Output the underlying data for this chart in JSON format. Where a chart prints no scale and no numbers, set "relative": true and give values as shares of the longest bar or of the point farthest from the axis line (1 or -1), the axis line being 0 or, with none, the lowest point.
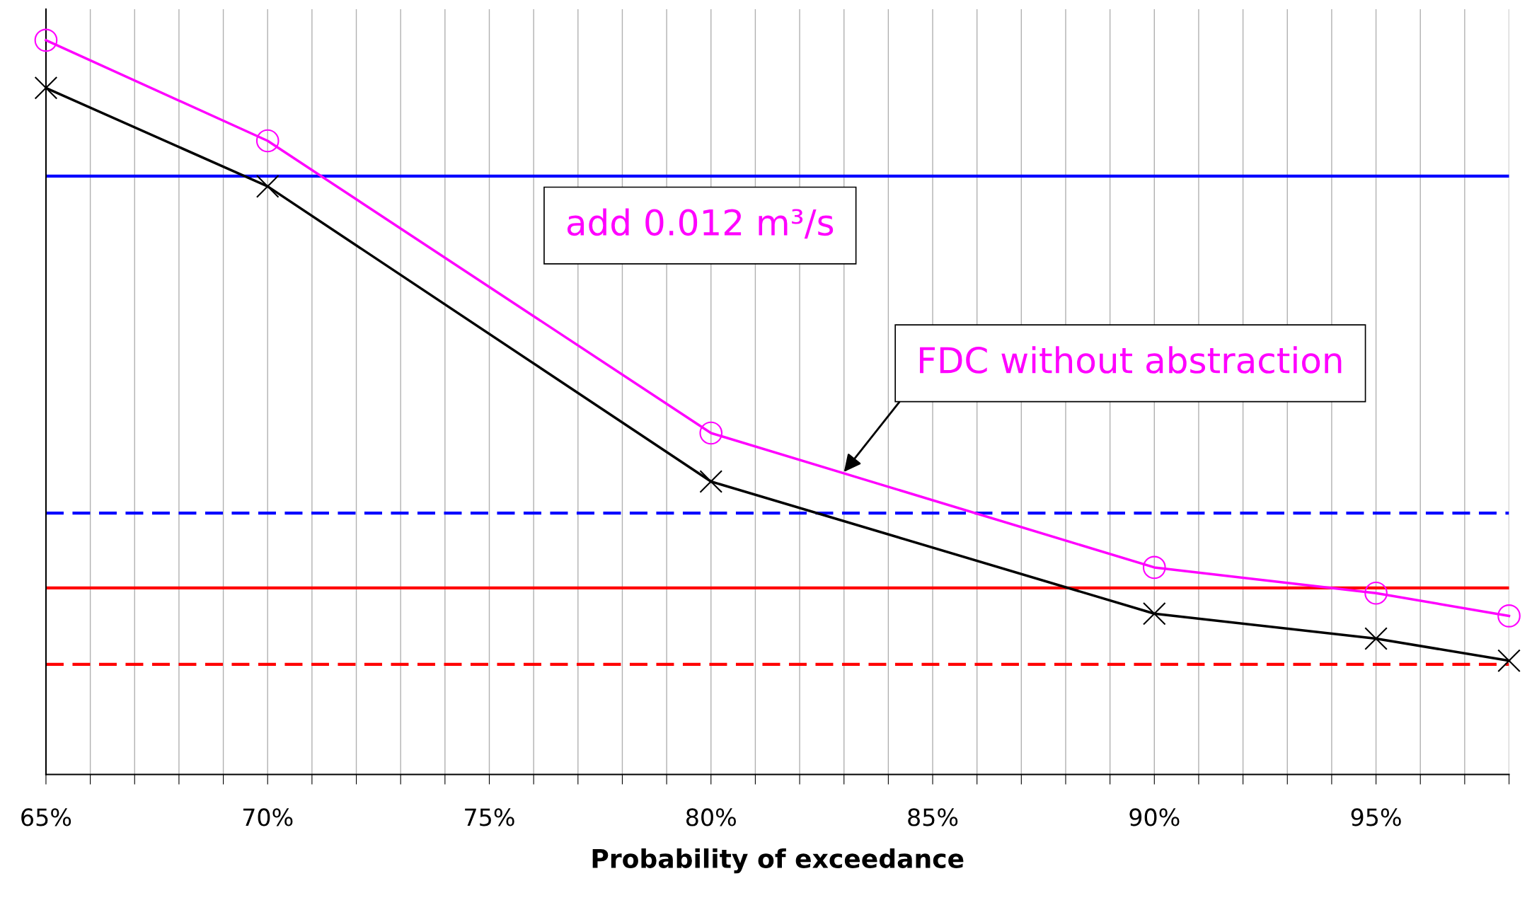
{
  "chart_data": {
    "type": "line",
    "xlabel": "Probability of exceedance",
    "relative": true,
    "x": [
      65,
      70,
      80,
      90,
      95,
      98
    ],
    "xlim": [
      65,
      98
    ],
    "xticks": [
      {
        "value": 65,
        "label": "65%"
      },
      {
        "value": 66,
        "label": null
      },
      {
        "value": 67,
        "label": null
      },
      {
        "value": 68,
        "label": null
      },
      {
        "value": 69,
        "label": null
      },
      {
        "value": 70,
        "label": "70%"
      },
      {
        "value": 71,
        "label": null
      },
      {
        "value": 72,
        "label": null
      },
      {
        "value": 73,
        "label": null
      },
      {
        "value": 74,
        "label": null
      },
      {
        "value": 75,
        "label": "75%"
      },
      {
        "value": 76,
        "label": null
      },
      {
        "value": 77,
        "label": null
      },
      {
        "value": 78,
        "label": null
      },
      {
        "value": 79,
        "label": null
      },
      {
        "value": 80,
        "label": "80%"
      },
      {
        "value": 81,
        "label": null
      },
      {
        "value": 82,
        "label": null
      },
      {
        "value": 83,
        "label": null
      },
      {
        "value": 84,
        "label": null
      },
      {
        "value": 85,
        "label": "85%"
      },
      {
        "value": 86,
        "label": null
      },
      {
        "value": 87,
        "label": null
      },
      {
        "value": 88,
        "label": null
      },
      {
        "value": 89,
        "label": null
      },
      {
        "value": 90,
        "label": "90%"
      },
      {
        "value": 91,
        "label": null
      },
      {
        "value": 92,
        "label": null
      },
      {
        "value": 93,
        "label": null
      },
      {
        "value": 94,
        "label": null
      },
      {
        "value": 95,
        "label": "95%"
      },
      {
        "value": 96,
        "label": null
      },
      {
        "value": 97,
        "label": null
      },
      {
        "value": 98,
        "label": null
      }
    ],
    "grid": "x",
    "line_style": "solid",
    "series": [
      {
        "color": "#ff00ff",
        "marker": "circle",
        "values": [
          1,
          0.863,
          0.465,
          0.282,
          0.247,
          0.216
        ]
      },
      {
        "color": "#000000",
        "marker": "cross",
        "values": [
          0.935,
          0.801,
          0.399,
          0.219,
          0.185,
          0.155
        ]
      }
    ],
    "ref_lines": [
      {
        "axis": "y",
        "value": 0.815,
        "color": "#0000ff",
        "line_style": "solid"
      },
      {
        "axis": "y",
        "value": 0.356,
        "color": "#0000ff",
        "line_style": "dashed"
      },
      {
        "axis": "y",
        "value": 0.254,
        "color": "#ff0000",
        "line_style": "solid"
      },
      {
        "axis": "y",
        "value": 0.15,
        "color": "#ff0000",
        "line_style": "dashed"
      }
    ],
    "annotations": [
      "add 0.012 m³/s",
      {
        "text": "FDC without abstraction",
        "x": 83,
        "y": 0.412
      }
    ]
  }
}
